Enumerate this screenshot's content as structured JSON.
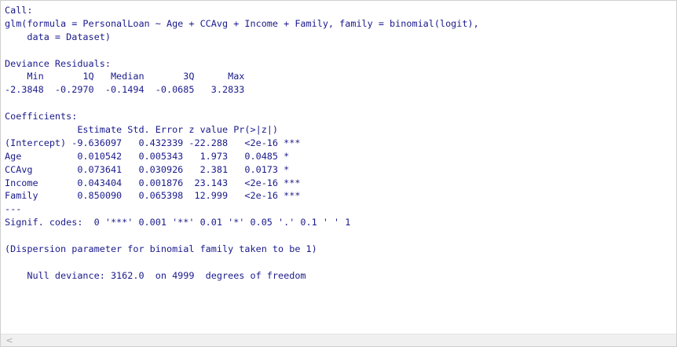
{
  "console": {
    "lines": [
      "Call:",
      "glm(formula = PersonalLoan ~ Age + CCAvg + Income + Family, family = binomial(logit),",
      "    data = Dataset)",
      "",
      "Deviance Residuals:",
      "    Min       1Q   Median       3Q      Max",
      "-2.3848  -0.2970  -0.1494  -0.0685   3.2833",
      "",
      "Coefficients:",
      "             Estimate Std. Error z value Pr(>|z|)",
      "(Intercept) -9.636097   0.432339 -22.288   <2e-16 ***",
      "Age          0.010542   0.005343   1.973   0.0485 *",
      "CCAvg        0.073641   0.030926   2.381   0.0173 *",
      "Income       0.043404   0.001876  23.143   <2e-16 ***",
      "Family       0.850090   0.065398  12.999   <2e-16 ***",
      "---",
      "Signif. codes:  0 '***' 0.001 '**' 0.01 '*' 0.05 '.' 0.1 ' ' 1",
      "",
      "(Dispersion parameter for binomial family taken to be 1)",
      "",
      "    Null deviance: 3162.0  on 4999  degrees of freedom"
    ]
  },
  "scrollbar": {
    "left_arrow": "<"
  },
  "colors": {
    "text": "#1a1a8c",
    "background": "#ffffff",
    "scrollbar": "#f0f0f0"
  }
}
